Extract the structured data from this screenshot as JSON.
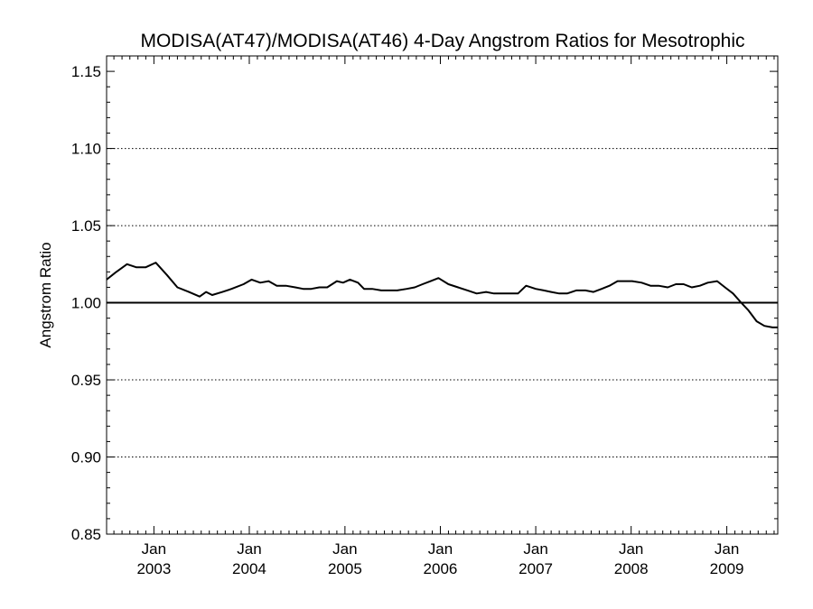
{
  "chart_data": {
    "type": "line",
    "title": "MODISA(AT47)/MODISA(AT46) 4-Day Angstrom Ratios for Mesotrophic",
    "xlabel": "",
    "ylabel": "Angstrom Ratio",
    "ylim": [
      0.85,
      1.16
    ],
    "xlim": [
      "2002-07-04",
      "2009-07-15"
    ],
    "y_ticks": [
      "0.85",
      "0.90",
      "0.95",
      "1.00",
      "1.05",
      "1.10",
      "1.15"
    ],
    "y_tick_values": [
      0.85,
      0.9,
      0.95,
      1.0,
      1.05,
      1.1,
      1.15
    ],
    "y_gridlines": [
      0.9,
      0.95,
      1.05,
      1.1
    ],
    "y_gridline_style": "dotted",
    "x_ticks": [
      {
        "date": "2003-01-01",
        "line1": "Jan",
        "line2": "2003"
      },
      {
        "date": "2004-01-01",
        "line1": "Jan",
        "line2": "2004"
      },
      {
        "date": "2005-01-01",
        "line1": "Jan",
        "line2": "2005"
      },
      {
        "date": "2006-01-01",
        "line1": "Jan",
        "line2": "2006"
      },
      {
        "date": "2007-01-01",
        "line1": "Jan",
        "line2": "2007"
      },
      {
        "date": "2008-01-01",
        "line1": "Jan",
        "line2": "2008"
      },
      {
        "date": "2009-01-01",
        "line1": "Jan",
        "line2": "2009"
      }
    ],
    "reference_line": {
      "y": 1.0
    },
    "series": [
      {
        "color": "#000000",
        "x": [
          "2002-07-04",
          "2002-08-10",
          "2002-09-20",
          "2002-10-25",
          "2002-12-01",
          "2003-01-08",
          "2003-02-20",
          "2003-04-01",
          "2003-05-15",
          "2003-06-25",
          "2003-07-20",
          "2003-08-12",
          "2003-09-20",
          "2003-10-25",
          "2003-12-10",
          "2004-01-10",
          "2004-02-12",
          "2004-03-15",
          "2004-04-15",
          "2004-05-20",
          "2004-06-25",
          "2004-07-25",
          "2004-08-25",
          "2004-09-25",
          "2004-10-25",
          "2004-12-01",
          "2004-12-25",
          "2005-01-20",
          "2005-02-20",
          "2005-03-15",
          "2005-04-15",
          "2005-05-20",
          "2005-06-20",
          "2005-07-20",
          "2005-08-25",
          "2005-09-25",
          "2005-10-25",
          "2005-11-25",
          "2005-12-25",
          "2006-02-01",
          "2006-03-10",
          "2006-04-15",
          "2006-05-20",
          "2006-06-25",
          "2006-07-25",
          "2006-08-25",
          "2006-09-25",
          "2006-10-25",
          "2006-11-25",
          "2007-01-01",
          "2007-02-01",
          "2007-03-01",
          "2007-04-01",
          "2007-05-01",
          "2007-06-05",
          "2007-07-10",
          "2007-08-10",
          "2007-09-10",
          "2007-10-10",
          "2007-11-10",
          "2007-12-10",
          "2008-01-05",
          "2008-02-10",
          "2008-03-15",
          "2008-04-15",
          "2008-05-20",
          "2008-06-20",
          "2008-07-20",
          "2008-08-20",
          "2008-09-20",
          "2008-10-20",
          "2008-11-25",
          "2008-12-25",
          "2009-01-25",
          "2009-02-25",
          "2009-03-25",
          "2009-04-25",
          "2009-05-25",
          "2009-06-25",
          "2009-07-15"
        ],
        "y": [
          1.015,
          1.02,
          1.025,
          1.023,
          1.023,
          1.026,
          1.018,
          1.01,
          1.007,
          1.004,
          1.007,
          1.005,
          1.007,
          1.009,
          1.012,
          1.015,
          1.013,
          1.014,
          1.011,
          1.011,
          1.01,
          1.009,
          1.009,
          1.01,
          1.01,
          1.014,
          1.013,
          1.015,
          1.013,
          1.009,
          1.009,
          1.008,
          1.008,
          1.008,
          1.009,
          1.01,
          1.012,
          1.014,
          1.016,
          1.012,
          1.01,
          1.008,
          1.006,
          1.007,
          1.006,
          1.006,
          1.006,
          1.006,
          1.011,
          1.009,
          1.008,
          1.007,
          1.006,
          1.006,
          1.008,
          1.008,
          1.007,
          1.009,
          1.011,
          1.014,
          1.014,
          1.014,
          1.013,
          1.011,
          1.011,
          1.01,
          1.012,
          1.012,
          1.01,
          1.011,
          1.013,
          1.014,
          1.01,
          1.006,
          1.0,
          0.995,
          0.988,
          0.985,
          0.984,
          0.984
        ]
      }
    ]
  }
}
